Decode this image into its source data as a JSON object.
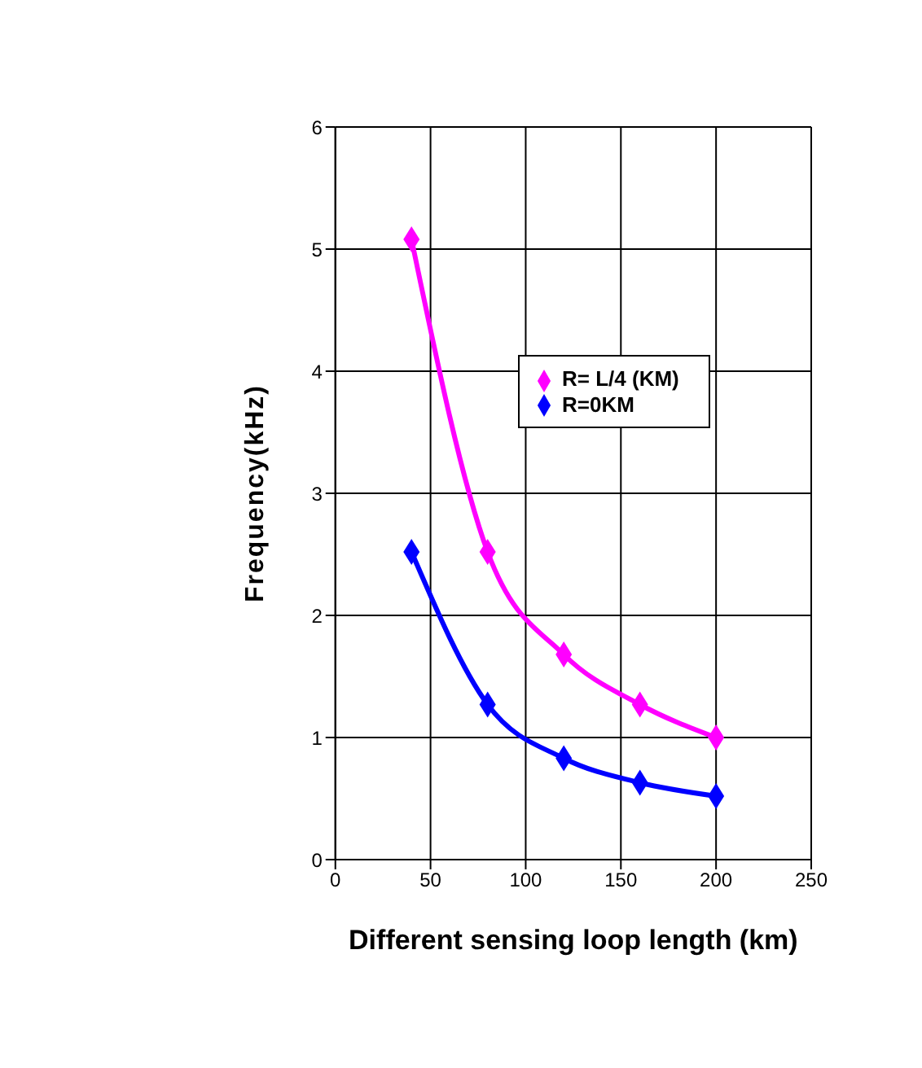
{
  "chart_data": {
    "type": "line",
    "xlabel": "Different sensing loop length (km)",
    "ylabel": "Frequency(kHz)",
    "x": [
      40,
      80,
      120,
      160,
      200
    ],
    "series": [
      {
        "name": "R=0KM",
        "color": "#0000ff",
        "values": [
          2.52,
          1.27,
          0.83,
          0.63,
          0.52
        ]
      },
      {
        "name": "R= L/4 (KM)",
        "color": "#ff00ff",
        "values": [
          5.08,
          2.52,
          1.68,
          1.27,
          1.0
        ]
      }
    ],
    "xlim": [
      0,
      250
    ],
    "xticks": [
      0,
      50,
      100,
      150,
      200,
      250
    ],
    "ylim": [
      0,
      6
    ],
    "yticks": [
      0,
      1,
      2,
      3,
      4,
      5,
      6
    ],
    "grid": true,
    "legend": "top right",
    "marker": "diamond",
    "line_style": "solid"
  }
}
